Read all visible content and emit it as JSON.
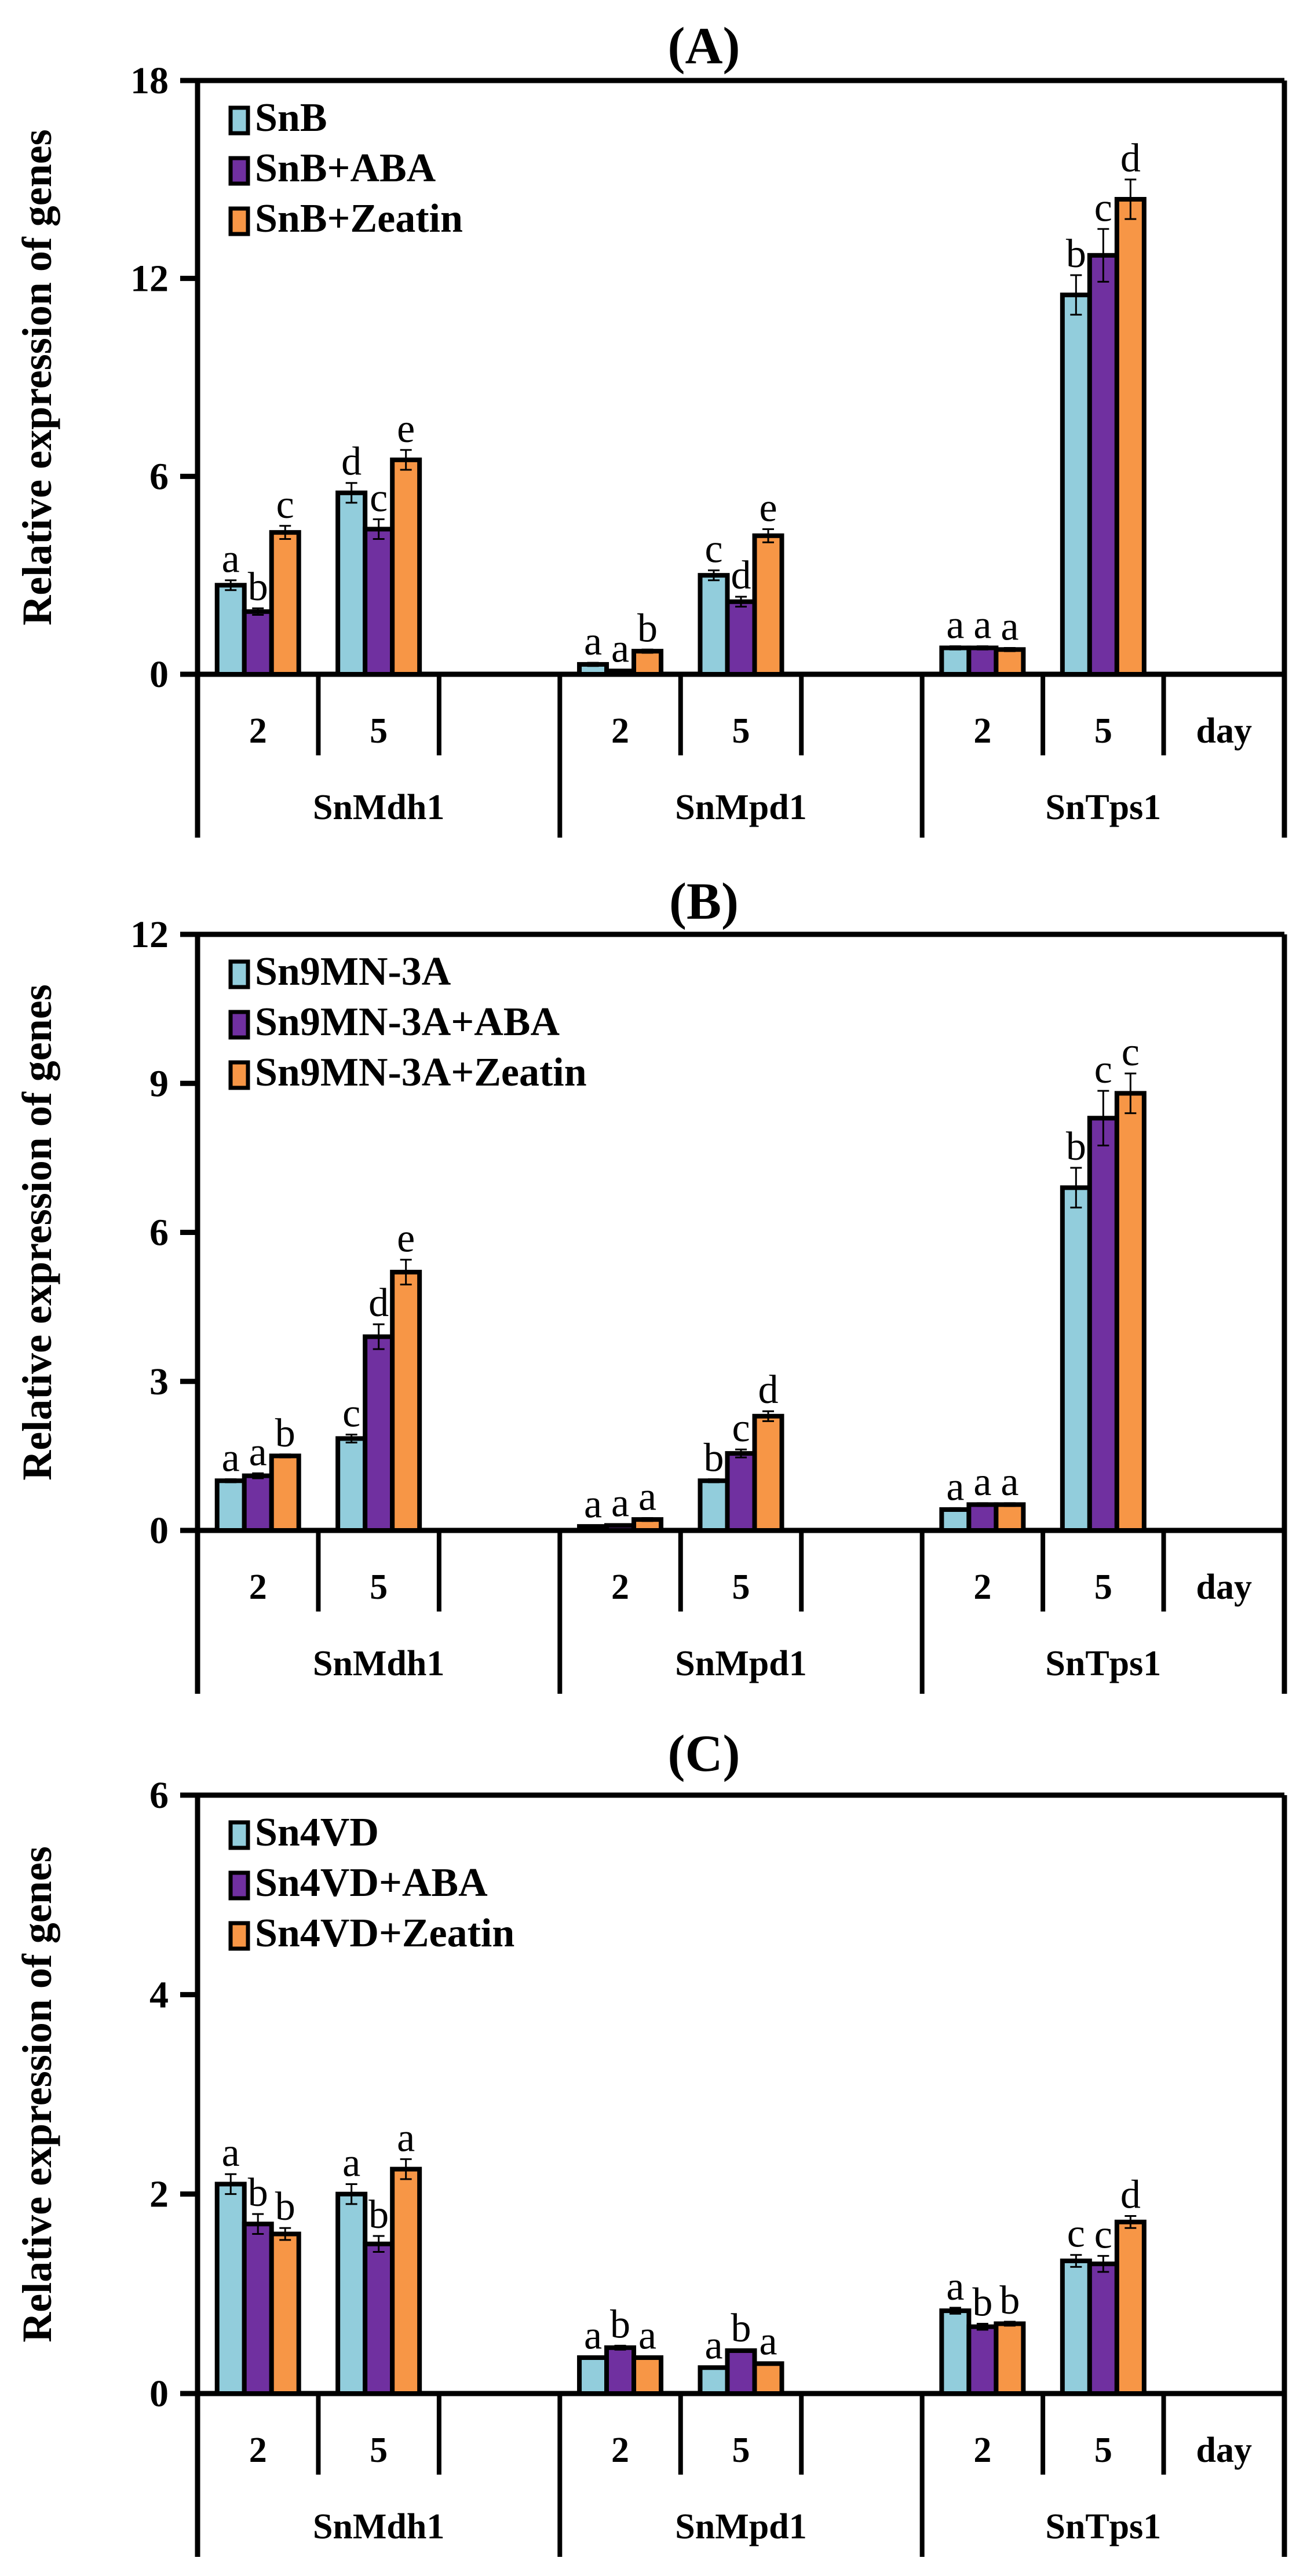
{
  "colors": [
    "#92CDDC",
    "#7030A0",
    "#F79646"
  ],
  "chart_data": [
    {
      "type": "bar",
      "title": "(A)",
      "ylabel": "Relative expression of genes",
      "ylim": [
        0,
        18
      ],
      "yticks": [
        0,
        6,
        12,
        18
      ],
      "genes": [
        "SnMdh1",
        "SnMpd1",
        "SnTps1"
      ],
      "days": [
        "2",
        "5"
      ],
      "xunit": "day",
      "categories": [
        "SnMdh1-2",
        "SnMdh1-5",
        "SnMpd1-2",
        "SnMpd1-5",
        "SnTps1-2",
        "SnTps1-5"
      ],
      "series": [
        {
          "name": "SnB",
          "values": [
            2.7,
            5.5,
            0.3,
            3.0,
            0.8,
            11.5
          ],
          "errors": [
            0.15,
            0.3,
            0.05,
            0.15,
            0.05,
            0.6
          ],
          "letters": [
            "a",
            "d",
            "a",
            "c",
            "a",
            "b"
          ]
        },
        {
          "name": "SnB+ABA",
          "values": [
            1.9,
            4.4,
            0.1,
            2.2,
            0.8,
            12.7
          ],
          "errors": [
            0.1,
            0.3,
            0.03,
            0.15,
            0.05,
            0.8
          ],
          "letters": [
            "b",
            "c",
            "a",
            "d",
            "a",
            "c"
          ]
        },
        {
          "name": "SnB+Zeatin",
          "values": [
            4.3,
            6.5,
            0.7,
            4.2,
            0.75,
            14.4
          ],
          "errors": [
            0.2,
            0.3,
            0.05,
            0.2,
            0.05,
            0.6
          ],
          "letters": [
            "c",
            "e",
            "b",
            "e",
            "a",
            "d"
          ]
        }
      ]
    },
    {
      "type": "bar",
      "title": "(B)",
      "ylabel": "Relative expression of genes",
      "ylim": [
        0,
        12
      ],
      "yticks": [
        0,
        3,
        6,
        9,
        12
      ],
      "genes": [
        "SnMdh1",
        "SnMpd1",
        "SnTps1"
      ],
      "days": [
        "2",
        "5"
      ],
      "xunit": "day",
      "categories": [
        "SnMdh1-2",
        "SnMdh1-5",
        "SnMpd1-2",
        "SnMpd1-5",
        "SnTps1-2",
        "SnTps1-5"
      ],
      "series": [
        {
          "name": "Sn9MN-3A",
          "values": [
            1.0,
            1.85,
            0.08,
            1.0,
            0.42,
            6.9
          ],
          "errors": [
            0.03,
            0.08,
            0.02,
            0.03,
            0.03,
            0.4
          ],
          "letters": [
            "a",
            "c",
            "a",
            "b",
            "a",
            "b"
          ]
        },
        {
          "name": "Sn9MN-3A+ABA",
          "values": [
            1.1,
            3.9,
            0.1,
            1.55,
            0.52,
            8.3
          ],
          "errors": [
            0.05,
            0.25,
            0.02,
            0.08,
            0.03,
            0.55
          ],
          "letters": [
            "a",
            "d",
            "a",
            "c",
            "a",
            "c"
          ]
        },
        {
          "name": "Sn9MN-3A+Zeatin",
          "values": [
            1.5,
            5.2,
            0.22,
            2.3,
            0.52,
            8.8
          ],
          "errors": [
            0.03,
            0.25,
            0.03,
            0.1,
            0.03,
            0.4
          ],
          "letters": [
            "b",
            "e",
            "a",
            "d",
            "a",
            "c"
          ]
        }
      ]
    },
    {
      "type": "bar",
      "title": "(C)",
      "ylabel": "Relative expression of genes",
      "ylim": [
        0,
        6
      ],
      "yticks": [
        0,
        2,
        4,
        6
      ],
      "genes": [
        "SnMdh1",
        "SnMpd1",
        "SnTps1"
      ],
      "days": [
        "2",
        "5"
      ],
      "xunit": "day",
      "categories": [
        "SnMdh1-2",
        "SnMdh1-5",
        "SnMpd1-2",
        "SnMpd1-5",
        "SnTps1-2",
        "SnTps1-5"
      ],
      "series": [
        {
          "name": "Sn4VD",
          "values": [
            2.1,
            2.0,
            0.36,
            0.26,
            0.83,
            1.33
          ],
          "errors": [
            0.1,
            0.1,
            0.01,
            0.01,
            0.03,
            0.06
          ],
          "letters": [
            "a",
            "a",
            "a",
            "a",
            "a",
            "c"
          ]
        },
        {
          "name": "Sn4VD+ABA",
          "values": [
            1.7,
            1.5,
            0.46,
            0.43,
            0.67,
            1.3
          ],
          "errors": [
            0.1,
            0.08,
            0.02,
            0.01,
            0.03,
            0.08
          ],
          "letters": [
            "b",
            "b",
            "b",
            "b",
            "b",
            "c"
          ]
        },
        {
          "name": "Sn4VD+Zeatin",
          "values": [
            1.6,
            2.25,
            0.36,
            0.3,
            0.7,
            1.72
          ],
          "errors": [
            0.06,
            0.1,
            0.01,
            0.01,
            0.02,
            0.06
          ],
          "letters": [
            "b",
            "a",
            "a",
            "a",
            "b",
            "d"
          ]
        }
      ]
    }
  ]
}
